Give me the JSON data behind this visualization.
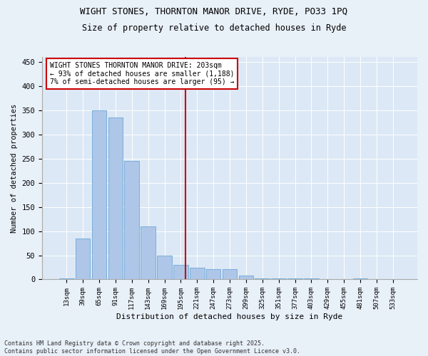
{
  "title1": "WIGHT STONES, THORNTON MANOR DRIVE, RYDE, PO33 1PQ",
  "title2": "Size of property relative to detached houses in Ryde",
  "xlabel": "Distribution of detached houses by size in Ryde",
  "ylabel": "Number of detached properties",
  "footnote": "Contains HM Land Registry data © Crown copyright and database right 2025.\nContains public sector information licensed under the Open Government Licence v3.0.",
  "categories": [
    "13sqm",
    "39sqm",
    "65sqm",
    "91sqm",
    "117sqm",
    "143sqm",
    "169sqm",
    "195sqm",
    "221sqm",
    "247sqm",
    "273sqm",
    "299sqm",
    "325sqm",
    "351sqm",
    "377sqm",
    "403sqm",
    "429sqm",
    "455sqm",
    "481sqm",
    "507sqm",
    "533sqm"
  ],
  "values": [
    2,
    85,
    350,
    335,
    245,
    110,
    50,
    30,
    25,
    22,
    22,
    8,
    2,
    2,
    2,
    2,
    1,
    0,
    2,
    0,
    0
  ],
  "bar_color": "#aec6e8",
  "bar_edge_color": "#5a9fd4",
  "vline_color": "#cc0000",
  "annotation_text": "WIGHT STONES THORNTON MANOR DRIVE: 203sqm\n← 93% of detached houses are smaller (1,188)\n7% of semi-detached houses are larger (95) →",
  "annotation_box_color": "#ffffff",
  "annotation_box_edge_color": "#cc0000",
  "bg_color": "#e8f0f8",
  "plot_bg_color": "#dce8f5",
  "ylim": [
    0,
    460
  ],
  "yticks": [
    0,
    50,
    100,
    150,
    200,
    250,
    300,
    350,
    400,
    450
  ]
}
